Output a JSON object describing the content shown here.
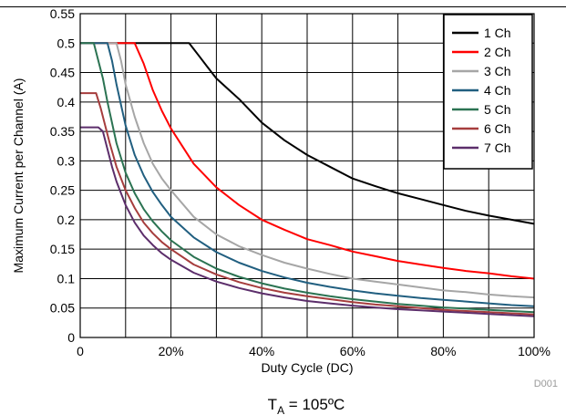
{
  "chart_data": {
    "type": "line",
    "title": "",
    "xlabel": "Duty Cycle (DC)",
    "ylabel": "Maximum Current per Channel (A)",
    "xlim": [
      0,
      100
    ],
    "ylim": [
      0,
      0.55
    ],
    "x_ticks": [
      "0",
      "20%",
      "40%",
      "60%",
      "80%",
      "100%"
    ],
    "y_ticks": [
      "0",
      "0.05",
      "0.1",
      "0.15",
      "0.2",
      "0.25",
      "0.3",
      "0.35",
      "0.4",
      "0.45",
      "0.5",
      "0.55"
    ],
    "grid": true,
    "legend_position": "top-right",
    "caption_main": "T",
    "caption_sub": "A",
    "caption_rest": " = 105ºC",
    "figure_code": "D001",
    "series": [
      {
        "name": "1 Ch",
        "color": "#000000",
        "x": [
          0,
          24,
          25,
          26,
          28,
          30,
          35,
          40,
          45,
          50,
          55,
          60,
          65,
          70,
          75,
          80,
          85,
          90,
          95,
          100
        ],
        "y": [
          0.5,
          0.5,
          0.49,
          0.48,
          0.46,
          0.44,
          0.405,
          0.365,
          0.335,
          0.31,
          0.29,
          0.27,
          0.257,
          0.245,
          0.235,
          0.225,
          0.215,
          0.207,
          0.2,
          0.193
        ]
      },
      {
        "name": "2 Ch",
        "color": "#ff0000",
        "x": [
          0,
          12,
          14,
          16,
          18,
          20,
          25,
          30,
          35,
          40,
          45,
          50,
          55,
          60,
          65,
          70,
          75,
          80,
          85,
          90,
          95,
          100
        ],
        "y": [
          0.5,
          0.5,
          0.465,
          0.42,
          0.385,
          0.355,
          0.295,
          0.255,
          0.225,
          0.2,
          0.183,
          0.167,
          0.157,
          0.146,
          0.138,
          0.13,
          0.124,
          0.118,
          0.113,
          0.109,
          0.104,
          0.1
        ]
      },
      {
        "name": "3 Ch",
        "color": "#a6a6a6",
        "x": [
          0,
          8,
          9,
          10,
          12,
          14,
          16,
          18,
          20,
          25,
          30,
          35,
          40,
          45,
          50,
          55,
          60,
          65,
          70,
          75,
          80,
          85,
          90,
          95,
          100
        ],
        "y": [
          0.5,
          0.5,
          0.47,
          0.43,
          0.375,
          0.33,
          0.295,
          0.27,
          0.25,
          0.205,
          0.175,
          0.155,
          0.14,
          0.127,
          0.117,
          0.108,
          0.1,
          0.095,
          0.09,
          0.085,
          0.08,
          0.077,
          0.073,
          0.07,
          0.068
        ]
      },
      {
        "name": "4 Ch",
        "color": "#215f80",
        "x": [
          0,
          6,
          7,
          8,
          10,
          12,
          14,
          16,
          18,
          20,
          25,
          30,
          35,
          40,
          45,
          50,
          55,
          60,
          65,
          70,
          75,
          80,
          85,
          90,
          95,
          100
        ],
        "y": [
          0.5,
          0.5,
          0.47,
          0.43,
          0.36,
          0.31,
          0.275,
          0.247,
          0.225,
          0.205,
          0.17,
          0.145,
          0.127,
          0.113,
          0.102,
          0.093,
          0.086,
          0.08,
          0.075,
          0.071,
          0.067,
          0.064,
          0.061,
          0.058,
          0.055,
          0.053
        ]
      },
      {
        "name": "5 Ch",
        "color": "#2b7352",
        "x": [
          0,
          3,
          4,
          5,
          6,
          8,
          10,
          12,
          14,
          16,
          18,
          20,
          25,
          30,
          35,
          40,
          45,
          50,
          55,
          60,
          65,
          70,
          75,
          80,
          85,
          90,
          95,
          100
        ],
        "y": [
          0.5,
          0.5,
          0.47,
          0.44,
          0.4,
          0.33,
          0.28,
          0.245,
          0.218,
          0.197,
          0.18,
          0.165,
          0.137,
          0.117,
          0.103,
          0.092,
          0.083,
          0.076,
          0.07,
          0.065,
          0.061,
          0.057,
          0.054,
          0.051,
          0.049,
          0.047,
          0.045,
          0.043
        ]
      },
      {
        "name": "6 Ch",
        "color": "#a63d3d",
        "x": [
          0,
          3.5,
          4.5,
          5.5,
          6.5,
          8,
          10,
          12,
          14,
          16,
          18,
          20,
          25,
          30,
          35,
          40,
          45,
          50,
          55,
          60,
          65,
          70,
          75,
          80,
          85,
          90,
          95,
          100
        ],
        "y": [
          0.415,
          0.415,
          0.39,
          0.36,
          0.33,
          0.29,
          0.25,
          0.22,
          0.195,
          0.177,
          0.162,
          0.15,
          0.124,
          0.107,
          0.094,
          0.084,
          0.076,
          0.07,
          0.065,
          0.06,
          0.056,
          0.053,
          0.05,
          0.047,
          0.045,
          0.043,
          0.041,
          0.039
        ]
      },
      {
        "name": "7 Ch",
        "color": "#5c2e6b",
        "x": [
          0,
          4,
          5,
          6,
          7,
          8,
          10,
          12,
          14,
          16,
          18,
          20,
          25,
          30,
          35,
          40,
          45,
          50,
          55,
          60,
          65,
          70,
          75,
          80,
          85,
          90,
          95,
          100
        ],
        "y": [
          0.357,
          0.357,
          0.35,
          0.32,
          0.29,
          0.265,
          0.225,
          0.195,
          0.173,
          0.157,
          0.143,
          0.132,
          0.11,
          0.095,
          0.084,
          0.075,
          0.068,
          0.062,
          0.058,
          0.054,
          0.051,
          0.048,
          0.046,
          0.044,
          0.042,
          0.04,
          0.038,
          0.036
        ]
      }
    ]
  }
}
